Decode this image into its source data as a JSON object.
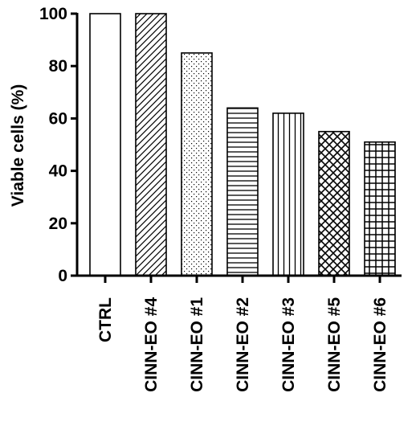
{
  "chart_data": {
    "type": "bar",
    "title": "",
    "xlabel": "",
    "ylabel": "Viable cells (%)",
    "ylim": [
      0,
      100
    ],
    "yticks": [
      0,
      20,
      40,
      60,
      80,
      100
    ],
    "grid": false,
    "legend": "none",
    "categories": [
      "CTRL",
      "CINN-EO #4",
      "CINN-EO #1",
      "CINN-EO #2",
      "CINN-EO #3",
      "CINN-EO #5",
      "CINN-EO #6"
    ],
    "values": [
      100,
      100,
      85,
      64,
      62,
      55,
      51
    ],
    "patterns": [
      "empty",
      "diagonal-lines",
      "dots",
      "horizontal-lines",
      "vertical-lines",
      "crosshatch-diagonal",
      "grid"
    ],
    "colors": {
      "bar_fill": "#ffffff",
      "stroke": "#000000"
    }
  }
}
